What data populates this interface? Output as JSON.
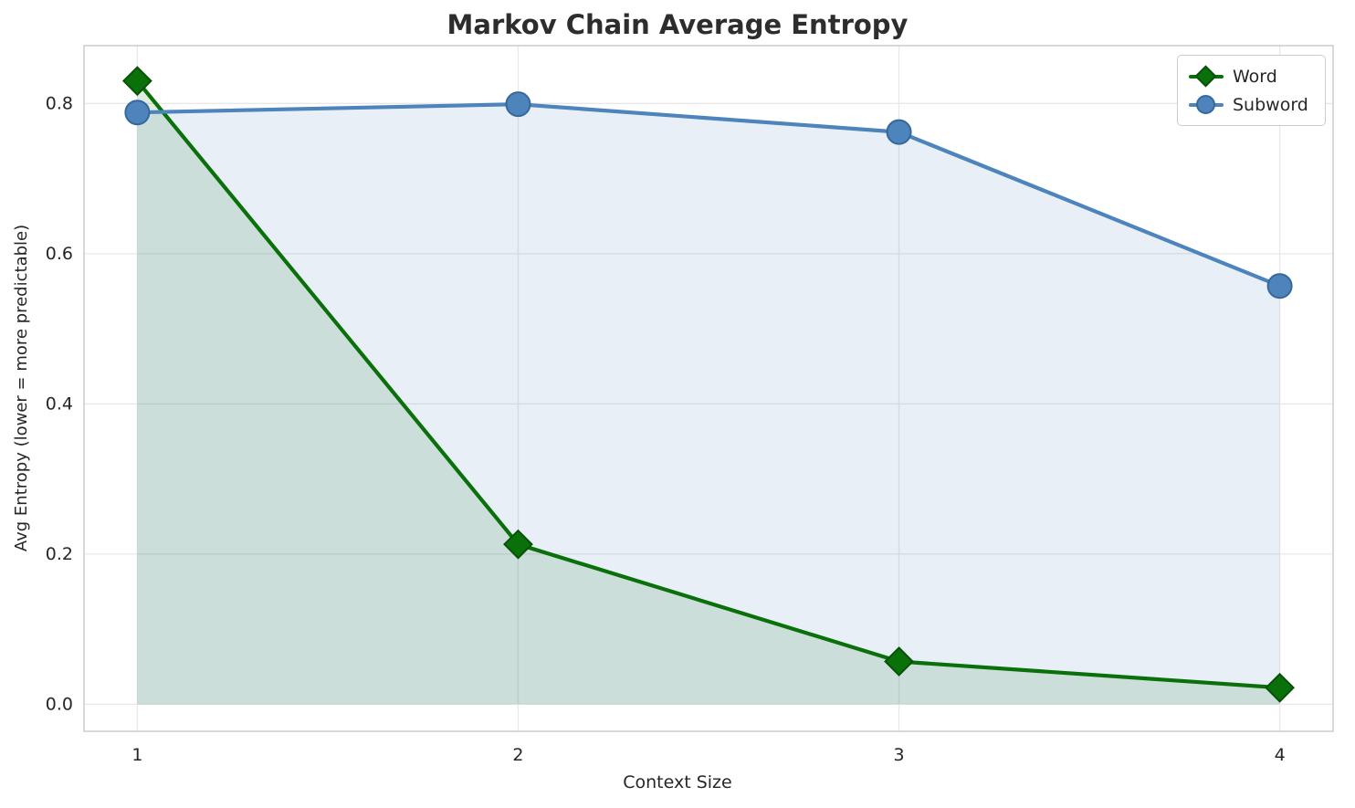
{
  "chart_data": {
    "type": "line",
    "title": "Markov Chain Average Entropy",
    "xlabel": "Context Size",
    "ylabel": "Avg Entropy (lower = more predictable)",
    "x": [
      1,
      2,
      3,
      4
    ],
    "series": [
      {
        "name": "Word",
        "color": "#0a700a",
        "edge_color": "#065206",
        "marker": "diamond",
        "values": [
          0.83,
          0.213,
          0.057,
          0.022
        ]
      },
      {
        "name": "Subword",
        "color": "#4d84bb",
        "edge_color": "#38689b",
        "marker": "circle",
        "values": [
          0.788,
          0.799,
          0.762,
          0.557
        ]
      }
    ],
    "fill_to_zero": true,
    "fill_opacity": 0.13,
    "xticks": [
      1,
      2,
      3,
      4
    ],
    "xtick_labels": [
      "1",
      "2",
      "3",
      "4"
    ],
    "yticks": [
      0,
      0.2,
      0.4,
      0.6,
      0.8
    ],
    "ytick_labels": [
      "0.0",
      "0.2",
      "0.4",
      "0.6",
      "0.8"
    ],
    "xlim": [
      0.86,
      4.14
    ],
    "ylim": [
      -0.036,
      0.877
    ],
    "grid": true,
    "legend_position": "upper right",
    "legend": [
      "Word",
      "Subword"
    ]
  },
  "colors": {
    "background": "#ffffff",
    "grid": "#e8e8e8",
    "axes_frame": "#cccccc",
    "text": "#262626",
    "title": "#2d2d2d"
  }
}
